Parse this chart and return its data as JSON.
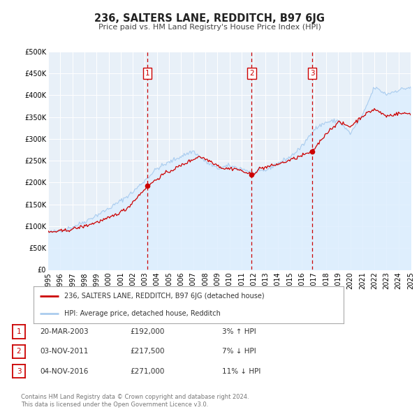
{
  "title": "236, SALTERS LANE, REDDITCH, B97 6JG",
  "subtitle": "Price paid vs. HM Land Registry's House Price Index (HPI)",
  "legend_line1": "236, SALTERS LANE, REDDITCH, B97 6JG (detached house)",
  "legend_line2": "HPI: Average price, detached house, Redditch",
  "footer_line1": "Contains HM Land Registry data © Crown copyright and database right 2024.",
  "footer_line2": "This data is licensed under the Open Government Licence v3.0.",
  "transactions": [
    {
      "num": 1,
      "date": "20-MAR-2003",
      "price": "£192,000",
      "pct": "3%",
      "dir": "↑",
      "year": 2003.22,
      "value": 192000
    },
    {
      "num": 2,
      "date": "03-NOV-2011",
      "price": "£217,500",
      "pct": "7%",
      "dir": "↓",
      "year": 2011.84,
      "value": 217500
    },
    {
      "num": 3,
      "date": "04-NOV-2016",
      "price": "£271,000",
      "pct": "11%",
      "dir": "↓",
      "year": 2016.85,
      "value": 271000
    }
  ],
  "ylim": [
    0,
    500000
  ],
  "yticks": [
    0,
    50000,
    100000,
    150000,
    200000,
    250000,
    300000,
    350000,
    400000,
    450000,
    500000
  ],
  "xlim": [
    1995,
    2025
  ],
  "plot_color_red": "#cc0000",
  "plot_color_blue": "#aaccee",
  "fill_color_blue": "#ddeeff",
  "bg_color": "#e8f0f8",
  "grid_color": "#ffffff",
  "vline_color": "#cc0000",
  "box_color": "#cc0000",
  "legend_border_color": "#aaaaaa",
  "title_color": "#222222",
  "subtitle_color": "#444444",
  "text_color": "#333333",
  "footer_color": "#777777"
}
